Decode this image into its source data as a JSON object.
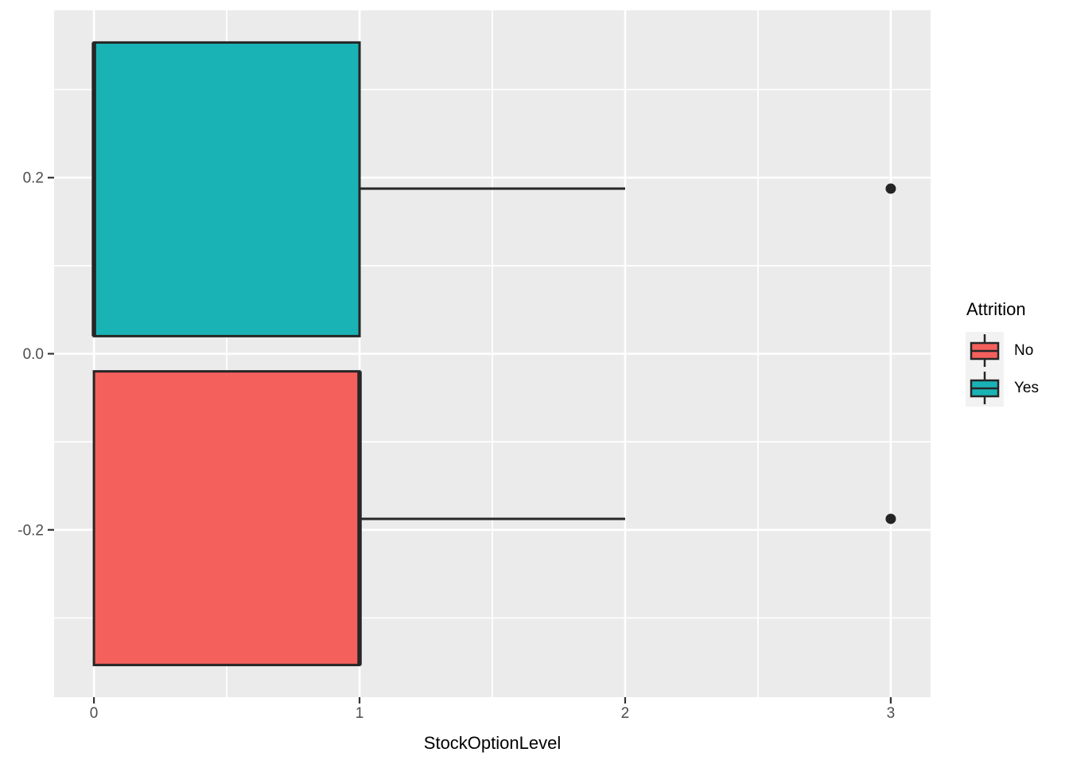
{
  "chart_data": {
    "type": "boxplot",
    "orientation": "horizontal",
    "title": "",
    "xlabel": "StockOptionLevel",
    "ylabel": "",
    "xlim": [
      -0.15,
      3.15
    ],
    "ylim": [
      -0.39,
      0.39
    ],
    "grid": true,
    "x_major_ticks": [
      {
        "value": 0,
        "label": "0"
      },
      {
        "value": 1,
        "label": "1"
      },
      {
        "value": 2,
        "label": "2"
      },
      {
        "value": 3,
        "label": "3"
      }
    ],
    "x_minor_ticks": [
      0.5,
      1.5,
      2.5
    ],
    "y_major_ticks": [
      {
        "value": 0.2,
        "label": "0.2"
      },
      {
        "value": 0.0,
        "label": "0.0"
      },
      {
        "value": -0.2,
        "label": "-0.2"
      }
    ],
    "y_minor_ticks": [
      0.3,
      0.1,
      -0.1,
      -0.3
    ],
    "legend": {
      "title": "Attrition",
      "position": "right",
      "entries": [
        {
          "label": "No",
          "color": "#F4605C"
        },
        {
          "label": "Yes",
          "color": "#1AB3B5"
        }
      ]
    },
    "series": [
      {
        "name": "Yes",
        "fill": "#1AB3B5",
        "band_top": 0.3535,
        "band_bottom": 0.02,
        "center": 0.1875,
        "q1": 0,
        "median": 0,
        "q3": 1,
        "whisker_low": 0,
        "whisker_high": 2,
        "outliers": [
          3
        ]
      },
      {
        "name": "No",
        "fill": "#F4605C",
        "band_top": -0.02,
        "band_bottom": -0.3535,
        "center": -0.1875,
        "q1": 0,
        "median": 1,
        "q3": 1,
        "whisker_low": 0,
        "whisker_high": 2,
        "outliers": [
          3
        ]
      }
    ],
    "style": {
      "panel_bg": "#EBEBEB",
      "grid_color": "#FFFFFF",
      "stroke_color": "#262626",
      "tick_color": "#333333",
      "tick_label_color": "#4D4D4D",
      "legend_key_bg": "#F2F2F2",
      "outlier_color": "#242424"
    }
  }
}
